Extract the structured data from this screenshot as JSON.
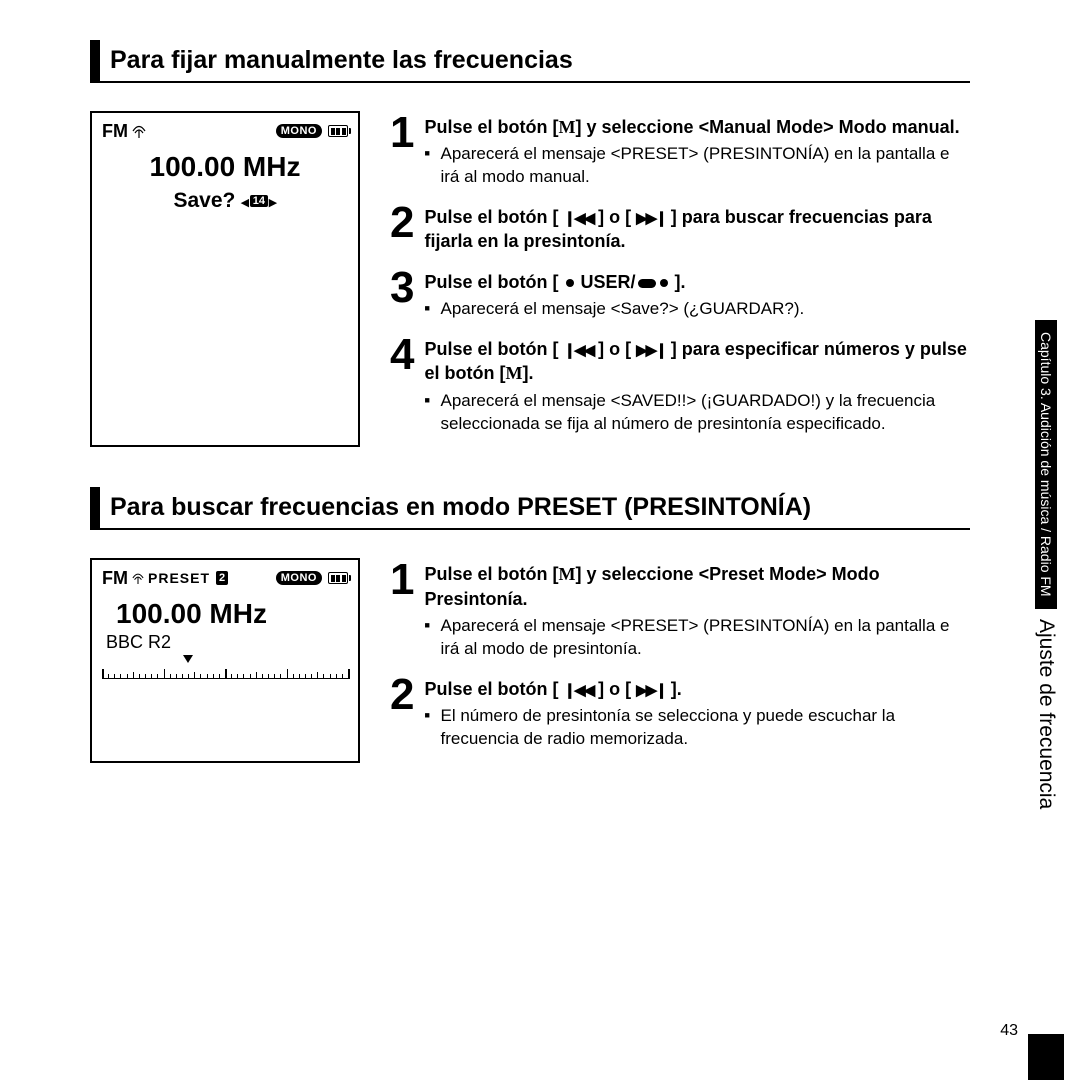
{
  "page_number": "43",
  "side_tab": {
    "black_text": "Capítulo 3. Audición de música / Radio FM",
    "white_text": "Ajuste de frecuencia"
  },
  "section1": {
    "heading": "Para fijar manualmente las frecuencias",
    "lcd": {
      "fm_label": "FM",
      "mono_label": "MONO",
      "frequency": "100.00 MHz",
      "save_text": "Save?",
      "save_preset_num": "14"
    },
    "steps": [
      {
        "num": "1",
        "title_before": "Pulse el botón [",
        "title_after": "] y seleccione <Manual Mode> Modo manual.",
        "bullets": [
          "Aparecerá el mensaje <PRESET> (PRESINTONÍA) en la pantalla e irá al modo manual."
        ]
      },
      {
        "num": "2",
        "title_a": "Pulse el botón [ ",
        "title_b": " ] o [ ",
        "title_c": " ] para buscar frecuencias para fijarla en la presintonía.",
        "bullets": []
      },
      {
        "num": "3",
        "title_a": "Pulse el botón [ ",
        "title_mid": " USER/",
        "title_b": " ].",
        "bullets": [
          "Aparecerá el mensaje <Save?> (¿GUARDAR?)."
        ]
      },
      {
        "num": "4",
        "title_a": "Pulse el botón [ ",
        "title_b": " ] o [ ",
        "title_c": " ] para especificar números y pulse el botón [",
        "title_d": "].",
        "bullets": [
          "Aparecerá el mensaje <SAVED!!> (¡GUARDADO!) y la frecuencia seleccionada se fija al número de presintonía especificado."
        ]
      }
    ]
  },
  "section2": {
    "heading": "Para buscar frecuencias en modo PRESET (PRESINTONÍA)",
    "lcd": {
      "fm_label": "FM",
      "preset_label": "PRESET",
      "preset_num": "2",
      "mono_label": "MONO",
      "frequency": "100.00 MHz",
      "station": "BBC R2",
      "pointer_percent": 35
    },
    "steps": [
      {
        "num": "1",
        "title_before": "Pulse el botón [",
        "title_after": "] y seleccione <Preset Mode> Modo Presintonía.",
        "bullets": [
          "Aparecerá el mensaje <PRESET> (PRESINTONÍA) en la pantalla e irá al modo de presintonía."
        ]
      },
      {
        "num": "2",
        "title_a": "Pulse el botón [ ",
        "title_b": " ] o [ ",
        "title_c": " ].",
        "bullets": [
          "El número de presintonía se selecciona y puede escuchar la frecuencia de radio memorizada."
        ]
      }
    ]
  }
}
